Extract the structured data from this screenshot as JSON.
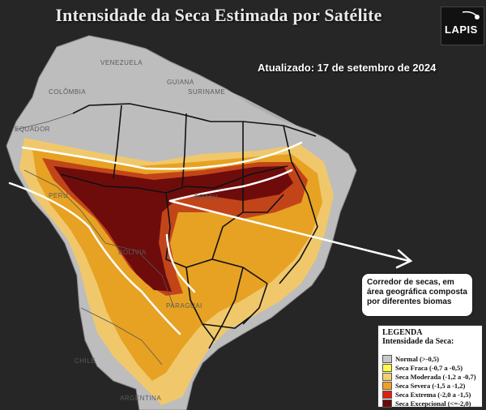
{
  "title": "Intensidade da Seca Estimada por Satélite",
  "logo_text": "LAPIS",
  "updated": "Atualizado: 17 de setembro de 2024",
  "callout": "Corredor de secas, em área geográfica composta por diferentes biomas",
  "legend": {
    "title": "LEGENDA",
    "subtitle": "Intensidade da Seca:",
    "items": [
      {
        "label": "Normal (>-0,5)",
        "color": "#c8c8c8"
      },
      {
        "label": "Seca Fraca (-0,7 a -0,5)",
        "color": "#ffff40"
      },
      {
        "label": "Seca Moderada (-1,2 a -0,7)",
        "color": "#f5cf6e"
      },
      {
        "label": "Seca Severa (-1,5 a -1,2)",
        "color": "#f0a020"
      },
      {
        "label": "Seca Extrema (-2,0 a -1,5)",
        "color": "#e02010"
      },
      {
        "label": "Seca Excepcional (<=-2,0)",
        "color": "#6b0a0a"
      }
    ]
  },
  "country_labels": [
    "VENEZUELA",
    "COLÔMBIA",
    "EQUADOR",
    "PERU",
    "BOLÍVIA",
    "BRASIL",
    "PARAGUAI",
    "CHILE",
    "ARGENTINA",
    "GUIANA",
    "SURINAME"
  ]
}
